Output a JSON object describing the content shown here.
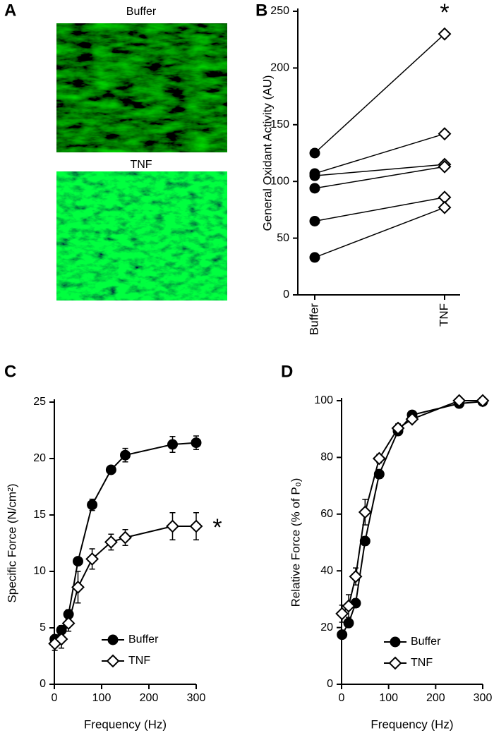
{
  "images": {
    "panel": "A",
    "labels": [
      "Buffer",
      "TNF"
    ]
  },
  "chart_data": [
    {
      "type": "paired",
      "panel": "B",
      "ylabel": "General Oxidant Activity (AU)",
      "categories": [
        "Buffer",
        "TNF"
      ],
      "annotation": "*",
      "series": [
        {
          "values": [
            125,
            230
          ]
        },
        {
          "values": [
            107,
            142
          ]
        },
        {
          "values": [
            105,
            115
          ]
        },
        {
          "values": [
            94,
            113
          ]
        },
        {
          "values": [
            65,
            86
          ]
        },
        {
          "values": [
            33,
            77
          ]
        }
      ],
      "ylim": [
        0,
        250
      ],
      "yticks": [
        0,
        50,
        100,
        150,
        200,
        250
      ]
    },
    {
      "type": "line",
      "panel": "C",
      "ylabel": "Specific Force (N/cm²)",
      "xlabel": "Frequency (Hz)",
      "annotation": "*",
      "x": [
        1,
        15,
        30,
        50,
        80,
        120,
        150,
        250,
        300
      ],
      "series": [
        {
          "name": "Buffer",
          "color": "#000000",
          "values": [
            4.0,
            4.8,
            6.2,
            10.9,
            15.9,
            19.0,
            20.3,
            21.25,
            21.4
          ],
          "errors": [
            0.3,
            0.4,
            0.4,
            0.3,
            0.5,
            0.3,
            0.6,
            0.7,
            0.6
          ]
        },
        {
          "name": "TNF",
          "color": "#ffffff",
          "values": [
            3.6,
            4.0,
            5.4,
            8.6,
            11.1,
            12.6,
            13.0,
            14.0,
            14.0
          ],
          "errors": [
            0.6,
            0.8,
            0.7,
            1.4,
            0.9,
            0.7,
            0.7,
            1.2,
            1.2
          ]
        }
      ],
      "xlim": [
        0,
        300
      ],
      "xticks": [
        0,
        100,
        200,
        300
      ],
      "ylim": [
        0,
        25
      ],
      "yticks": [
        0,
        5,
        10,
        15,
        20,
        25
      ]
    },
    {
      "type": "line",
      "panel": "D",
      "ylabel": "Relative Force (% of P₀)",
      "xlabel": "Frequency (Hz)",
      "x": [
        1,
        15,
        30,
        50,
        80,
        120,
        150,
        250,
        300
      ],
      "series": [
        {
          "name": "Buffer",
          "color": "#000000",
          "values": [
            17.5,
            21.6,
            28.6,
            50.5,
            74.1,
            89.3,
            95.0,
            99.0,
            99.7
          ],
          "errors": [
            1.0,
            1.5,
            1.5,
            1.5,
            1.5,
            1.0,
            1.0,
            0.5,
            0.5
          ]
        },
        {
          "name": "TNF",
          "color": "#ffffff",
          "values": [
            24.9,
            27.6,
            38.0,
            60.7,
            79.6,
            90.3,
            93.5,
            100,
            100
          ],
          "errors": [
            3.0,
            4.0,
            3.0,
            4.5,
            1.5,
            1.5,
            1.0,
            0.5,
            0.5
          ]
        }
      ],
      "xlim": [
        0,
        300
      ],
      "xticks": [
        0,
        100,
        200,
        300
      ],
      "ylim": [
        0,
        100
      ],
      "yticks": [
        0,
        20,
        40,
        60,
        80,
        100
      ]
    }
  ]
}
